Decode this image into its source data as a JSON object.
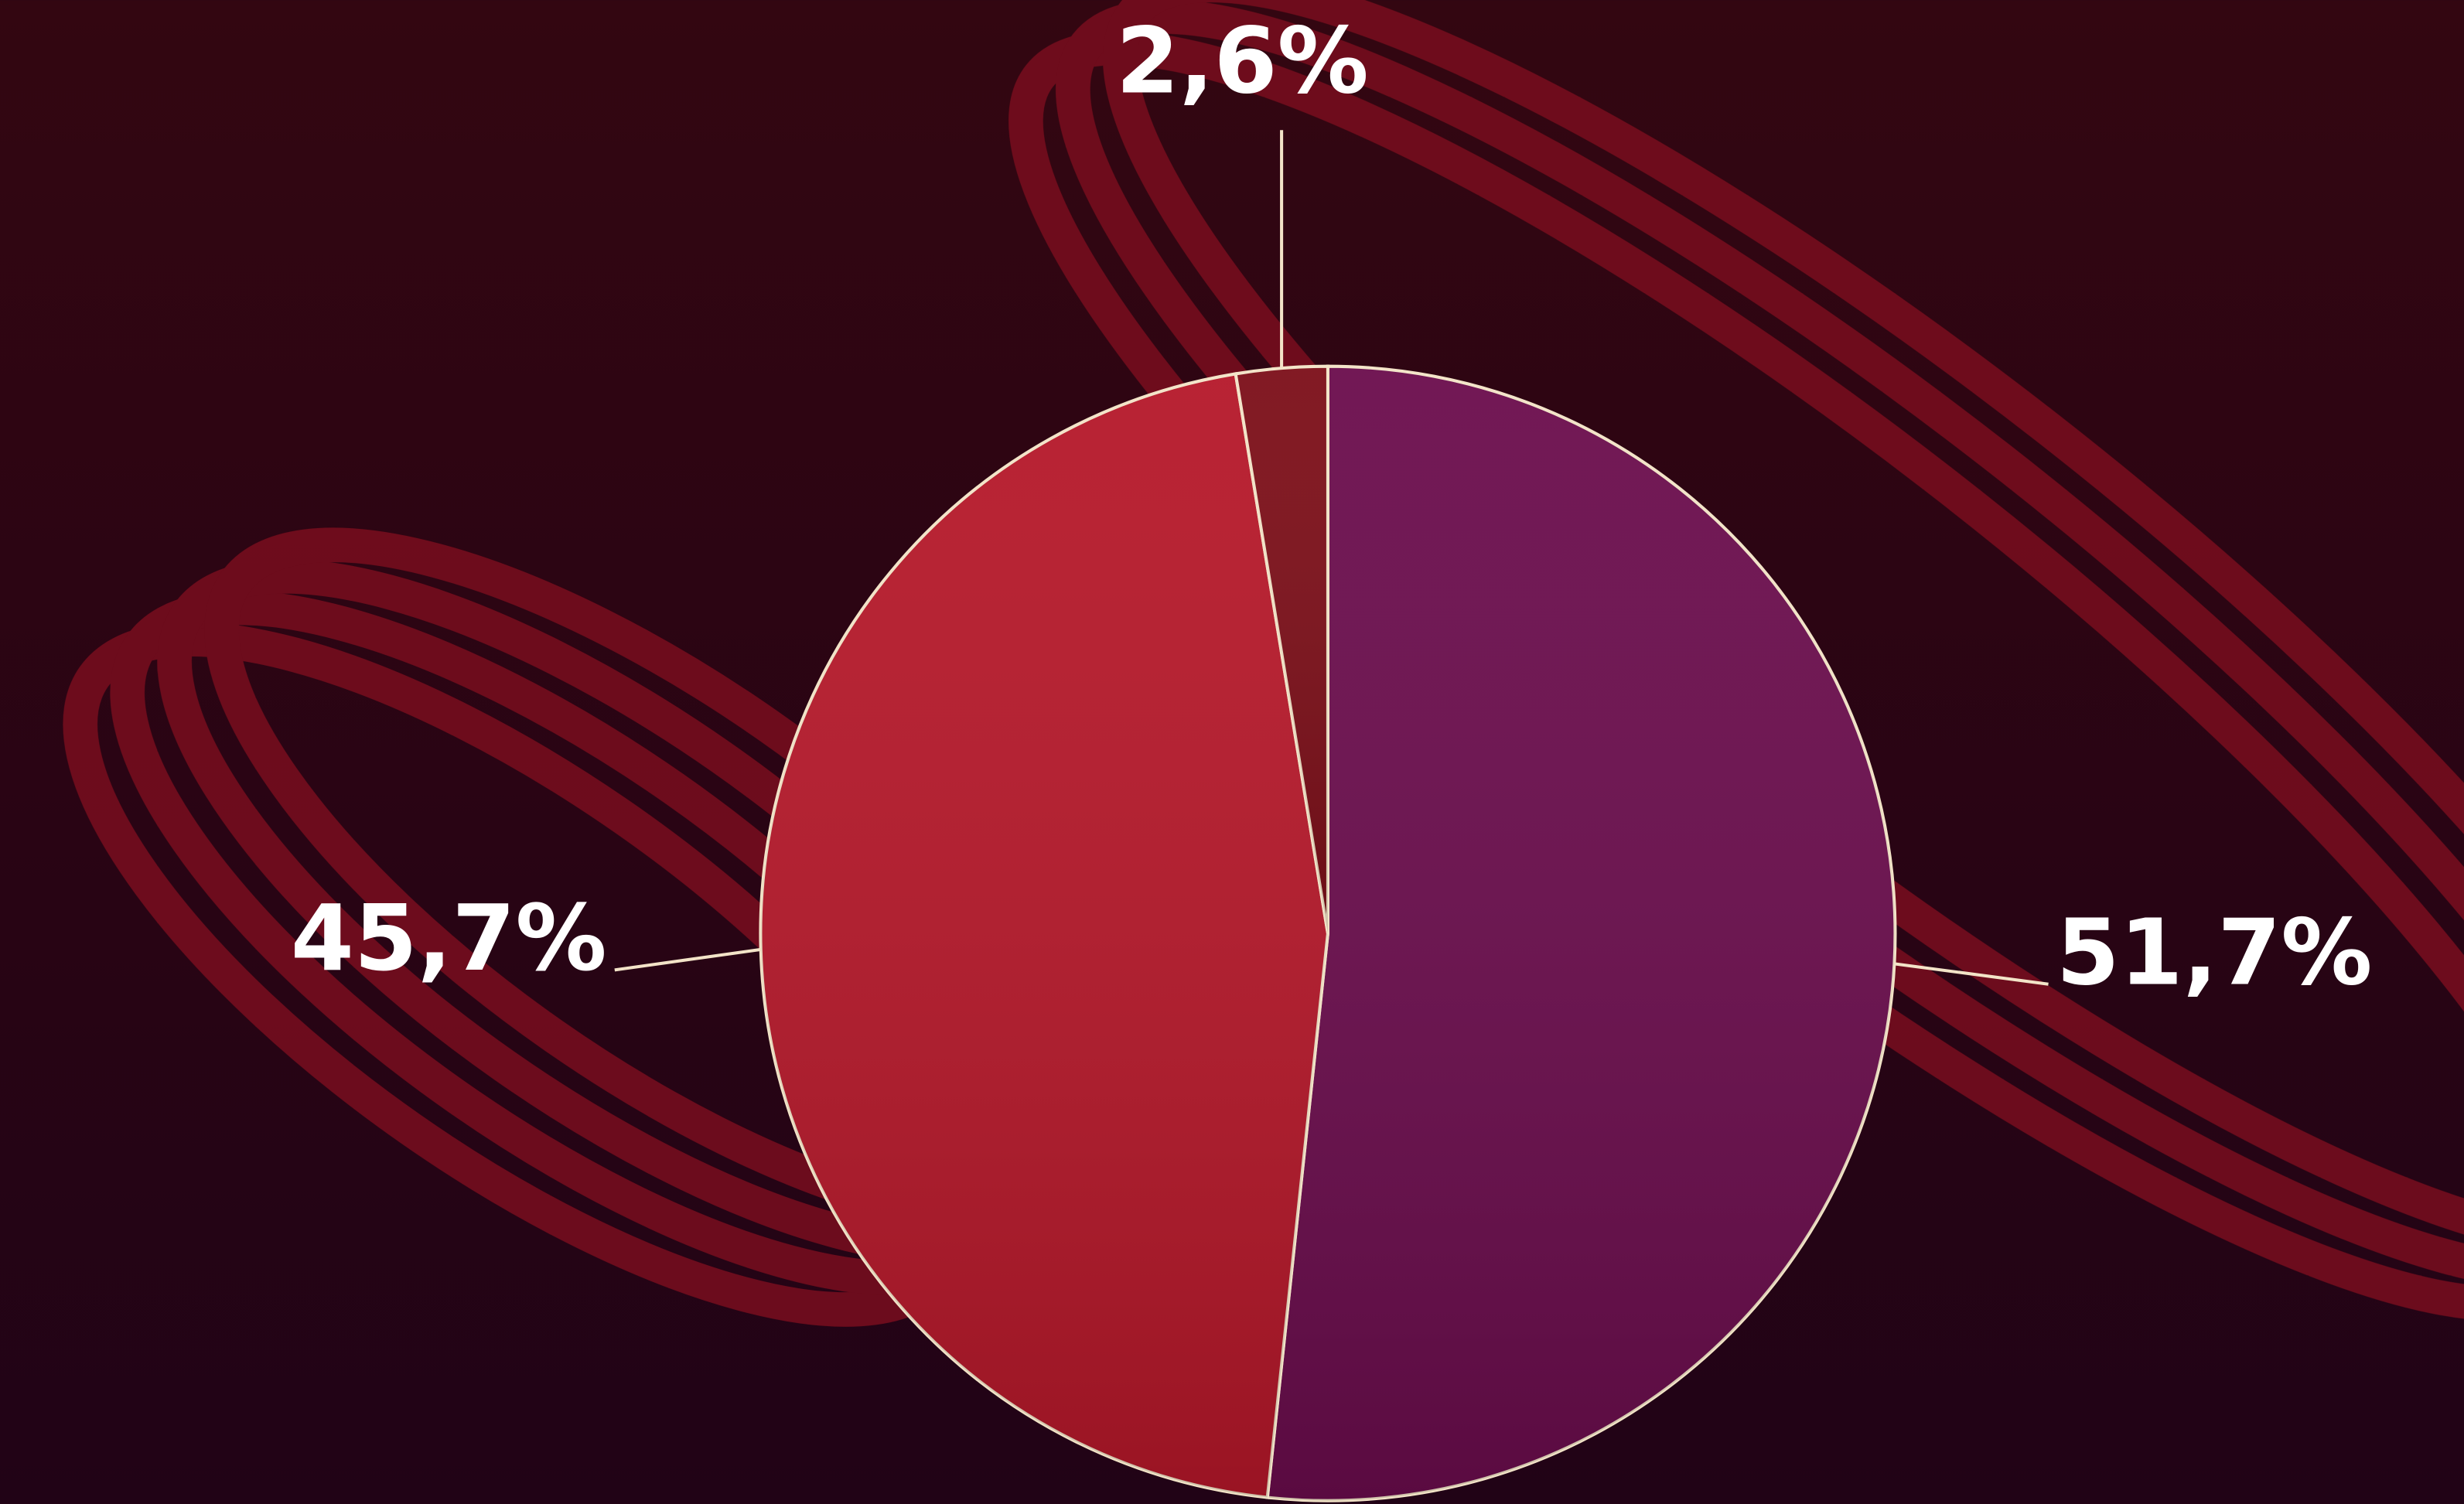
{
  "chart_data": {
    "type": "pie",
    "values": [
      51.7,
      45.7,
      2.6
    ],
    "value_labels": [
      "51,7%",
      "45,7%",
      "2,6%"
    ],
    "colors": [
      "#6a0c4c",
      "#b51729",
      "#7c0e18"
    ]
  }
}
